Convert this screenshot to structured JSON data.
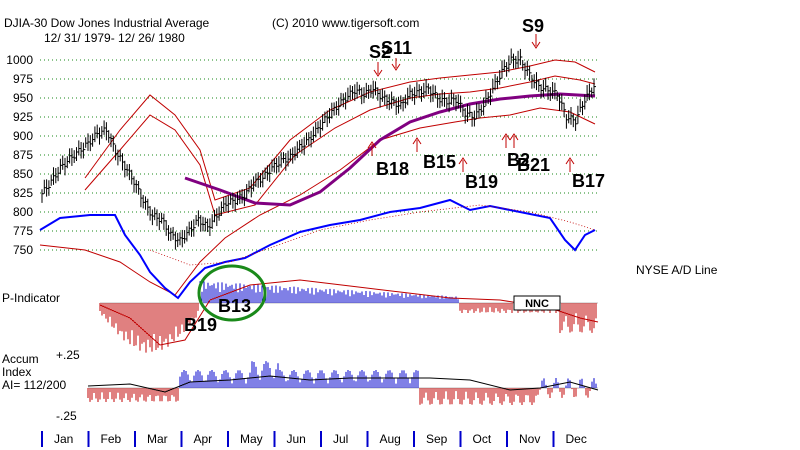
{
  "chart_data": {
    "type": "line",
    "title": "DJIA-30  Dow Jones Industrial Average",
    "date_range": "12/ 31/ 1979- 12/ 26/ 1980",
    "copyright": "(C) 2010 www.tigersoft.com",
    "price_axis": {
      "ticks": [
        "1000",
        "975",
        "950",
        "925",
        "900",
        "875",
        "850",
        "825",
        "800",
        "775",
        "750"
      ],
      "ylim": [
        750,
        1000
      ]
    },
    "months": [
      "Jan",
      "Feb",
      "Mar",
      "Apr",
      "May",
      "Jun",
      "Jul",
      "Aug",
      "Sep",
      "Oct",
      "Nov",
      "Dec"
    ],
    "djia_close": [
      824,
      840,
      858,
      870,
      880,
      890,
      903,
      908,
      880,
      860,
      840,
      815,
      795,
      790,
      770,
      762,
      775,
      790,
      780,
      795,
      812,
      815,
      822,
      838,
      845,
      858,
      867,
      872,
      885,
      895,
      910,
      925,
      938,
      950,
      960,
      955,
      962,
      950,
      945,
      940,
      955,
      958,
      962,
      950,
      945,
      948,
      930,
      925,
      940,
      962,
      985,
      1000,
      1000,
      980,
      965,
      960,
      955,
      925,
      920,
      948,
      965
    ],
    "ad_line_label": "NYSE A/D Line",
    "panels": {
      "p_indicator": {
        "label": "P-Indicator",
        "badge": "NNC"
      },
      "accum_index": {
        "label_line1": "Accum",
        "label_line2": "Index",
        "ai_text": "AI= 112/200",
        "top_tick": "+.25",
        "bottom_tick": "-.25"
      }
    },
    "signals": [
      {
        "label": "S2",
        "type": "sell"
      },
      {
        "label": "S11",
        "type": "sell"
      },
      {
        "label": "S9",
        "type": "sell"
      },
      {
        "label": "B18",
        "type": "buy"
      },
      {
        "label": "B15",
        "type": "buy"
      },
      {
        "label": "B19",
        "type": "buy"
      },
      {
        "label": "B2",
        "type": "buy"
      },
      {
        "label": "B21",
        "type": "buy"
      },
      {
        "label": "B17",
        "type": "buy"
      },
      {
        "label": "B13",
        "type": "buy"
      },
      {
        "label": "B19",
        "type": "buy"
      }
    ]
  }
}
